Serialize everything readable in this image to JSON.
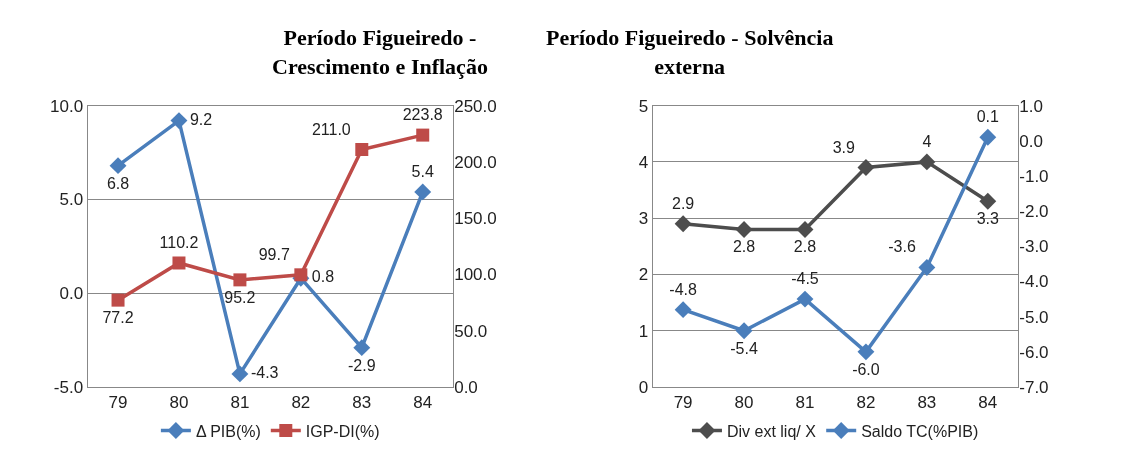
{
  "chart_data": [
    {
      "type": "line",
      "title": "Período Figueiredo -\nCrescimento e Inflação",
      "categories": [
        "79",
        "80",
        "81",
        "82",
        "83",
        "84"
      ],
      "series": [
        {
          "name": "Δ PIB(%)",
          "color": "#4a7ebb",
          "values": [
            6.8,
            9.2,
            -4.3,
            0.8,
            -2.9,
            5.4
          ],
          "value_labels": [
            "6.8",
            "9.2",
            "-4.3",
            "0.8",
            "-2.9",
            "5.4"
          ],
          "marker": "diamond"
        },
        {
          "name": "IGP-DI(%)",
          "color": "#be4b48",
          "values": [
            77.2,
            110.2,
            95.2,
            99.7,
            211.0,
            223.8
          ],
          "value_labels": [
            "77.2",
            "110.2",
            "95.2",
            "99.7",
            "211.0",
            "223.8"
          ],
          "axis": "y2",
          "marker": "square"
        }
      ],
      "ylim": [
        -5,
        10
      ],
      "yticks": [
        {
          "value": -5,
          "label": "-5.0"
        },
        {
          "value": 0,
          "label": "0.0"
        },
        {
          "value": 5,
          "label": "5.0"
        },
        {
          "value": 10,
          "label": "10.0"
        }
      ],
      "y2lim": [
        0,
        250
      ],
      "y2ticks": [
        {
          "value": 0,
          "label": "0.0"
        },
        {
          "value": 50,
          "label": "50.0"
        },
        {
          "value": 100,
          "label": "100.0"
        },
        {
          "value": 150,
          "label": "150.0"
        },
        {
          "value": 200,
          "label": "200.0"
        },
        {
          "value": 250,
          "label": "250.0"
        }
      ],
      "grid": "y",
      "legend": "bottom",
      "line_style": "solid"
    },
    {
      "type": "line",
      "title": "Período Figueiredo - Solvência\nexterna",
      "categories": [
        "79",
        "80",
        "81",
        "82",
        "83",
        "84"
      ],
      "series": [
        {
          "name": "Div ext liq/ X",
          "color": "#4d4d4d",
          "values": [
            2.9,
            2.8,
            2.8,
            3.9,
            4,
            3.3
          ],
          "value_labels": [
            "2.9",
            "2.8",
            "2.8",
            "3.9",
            "4",
            "3.3"
          ],
          "marker": "diamond"
        },
        {
          "name": "Saldo TC(%PIB)",
          "color": "#4a7ebb",
          "values": [
            -4.8,
            -5.4,
            -4.5,
            -6.0,
            -3.6,
            0.1
          ],
          "value_labels": [
            "-4.8",
            "-5.4",
            "-4.5",
            "-6.0",
            "-3.6",
            "0.1"
          ],
          "axis": "y2",
          "marker": "diamond"
        }
      ],
      "ylim": [
        0,
        5
      ],
      "yticks": [
        0,
        1,
        2,
        3,
        4,
        5
      ],
      "y2lim": [
        -7,
        1
      ],
      "y2ticks": [
        {
          "value": -7,
          "label": "-7.0"
        },
        {
          "value": -6,
          "label": "-6.0"
        },
        {
          "value": -5,
          "label": "-5.0"
        },
        {
          "value": -4,
          "label": "-4.0"
        },
        {
          "value": -3,
          "label": "-3.0"
        },
        {
          "value": -2,
          "label": "-2.0"
        },
        {
          "value": -1,
          "label": "-1.0"
        },
        {
          "value": 0,
          "label": "0.0"
        },
        {
          "value": 1,
          "label": "1.0"
        }
      ],
      "grid": "y",
      "legend": "bottom",
      "line_style": "solid"
    }
  ]
}
